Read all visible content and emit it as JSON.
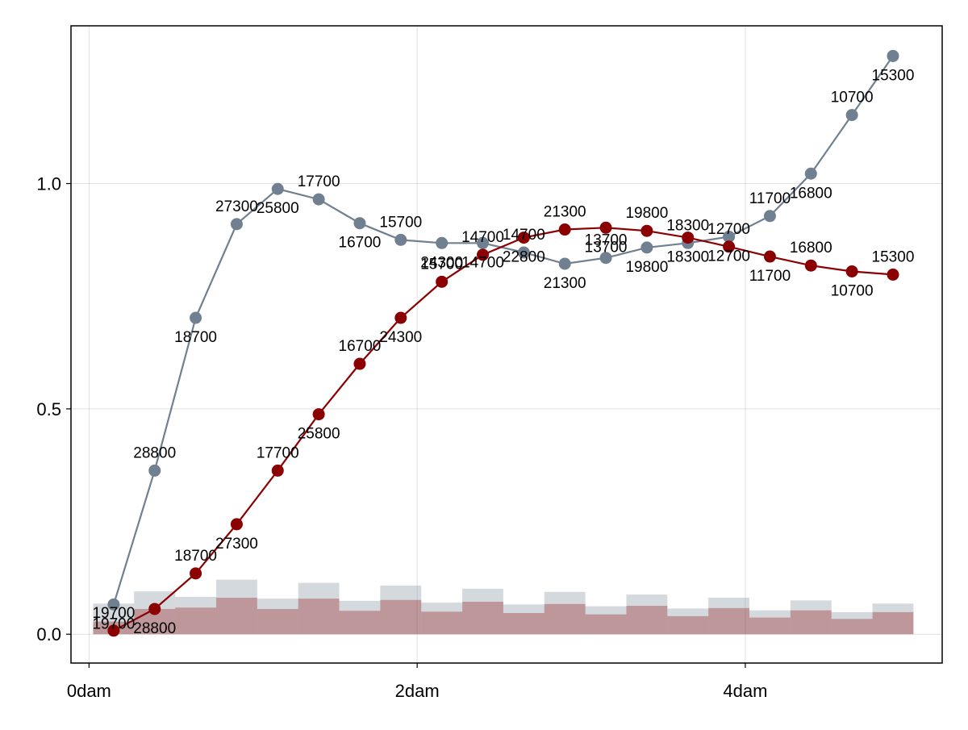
{
  "chart_data": {
    "type": "line",
    "title": "",
    "xlabel": "",
    "ylabel": "",
    "xlim": [
      -0.11,
      5.2
    ],
    "ylim": [
      -0.064,
      1.35
    ],
    "grid": true,
    "x_ticks": [
      {
        "value": 0,
        "label": "0dam"
      },
      {
        "value": 2,
        "label": "2dam"
      },
      {
        "value": 4,
        "label": "4dam"
      }
    ],
    "y_ticks": [
      {
        "value": 0,
        "label": "0.0"
      },
      {
        "value": 0.5,
        "label": "0.5"
      },
      {
        "value": 1,
        "label": "1.0"
      }
    ],
    "x": [
      0.15,
      0.4,
      0.65,
      0.9,
      1.15,
      1.4,
      1.65,
      1.9,
      2.15,
      2.4,
      2.65,
      2.9,
      3.15,
      3.4,
      3.65,
      3.9,
      4.15,
      4.4,
      4.65,
      4.9
    ],
    "series": [
      {
        "color": "#708090",
        "values": [
          0.066,
          0.363,
          0.702,
          0.91,
          0.988,
          0.965,
          0.912,
          0.875,
          0.868,
          0.868,
          0.847,
          0.822,
          0.835,
          0.858,
          0.868,
          0.882,
          0.928,
          1.022,
          1.152,
          1.283
        ],
        "labels": [
          "19700",
          "28800",
          "18700",
          "27300",
          "25800",
          "17700",
          "16700",
          "15700",
          "24300",
          "14700",
          "14700",
          "21300",
          "13700",
          "19800",
          "18300",
          "12700",
          "11700",
          "16800",
          "10700",
          "15300"
        ],
        "bars": [
          0.068,
          0.095,
          0.083,
          0.121,
          0.079,
          0.114,
          0.074,
          0.108,
          0.07,
          0.101,
          0.066,
          0.094,
          0.062,
          0.088,
          0.057,
          0.081,
          0.053,
          0.075,
          0.049,
          0.068
        ]
      },
      {
        "color": "#8b0000",
        "values": [
          0.008,
          0.056,
          0.135,
          0.244,
          0.363,
          0.488,
          0.6,
          0.702,
          0.782,
          0.842,
          0.88,
          0.898,
          0.902,
          0.895,
          0.88,
          0.86,
          0.838,
          0.818,
          0.805,
          0.798
        ],
        "labels": [
          "19700",
          "28800",
          "18700",
          "27300",
          "17700",
          "25800",
          "16700",
          "24300",
          "15700",
          "14700",
          "22800",
          "21300",
          "13700",
          "19800",
          "18300",
          "12700",
          "11700",
          "16800",
          "10700",
          "15300"
        ],
        "bars": [
          0.028,
          0.056,
          0.059,
          0.081,
          0.056,
          0.079,
          0.052,
          0.076,
          0.05,
          0.072,
          0.047,
          0.067,
          0.044,
          0.063,
          0.04,
          0.058,
          0.037,
          0.053,
          0.034,
          0.049
        ]
      }
    ]
  }
}
